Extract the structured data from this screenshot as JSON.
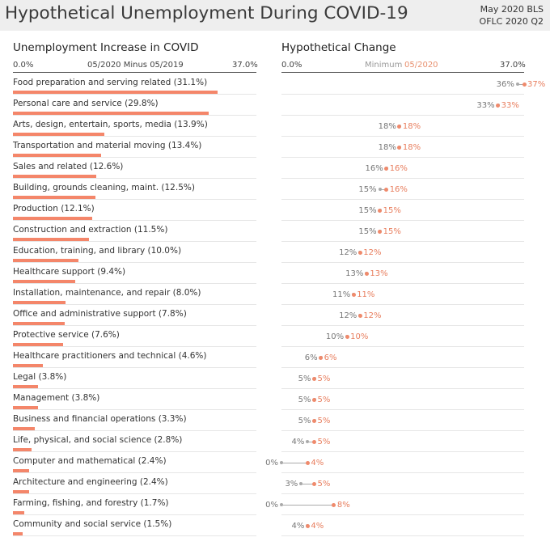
{
  "header": {
    "title": "Hypothetical Unemployment During COVID-19",
    "source_line1": "May 2020 BLS",
    "source_line2": "OFLC 2020 Q2"
  },
  "left_panel": {
    "title": "Unemployment Increase in COVID",
    "axis_min": "0.0%",
    "axis_mid": "05/2020 Minus 05/2019",
    "axis_max": "37.0%"
  },
  "right_panel": {
    "title": "Hypothetical Change",
    "axis_min": "0.0%",
    "axis_mid_label": "Minimum",
    "axis_mid_value": "05/2020",
    "axis_max": "37.0%"
  },
  "colors": {
    "accent": "#f4866a",
    "baseline_dot": "#aaaaaa",
    "header_bg": "#eeeeee"
  },
  "chart_data": {
    "type": "bar",
    "xlim": [
      0,
      37
    ],
    "categories": [
      "Food preparation and serving related (31.1%)",
      "Personal care and service (29.8%)",
      "Arts, design, entertain, sports, media (13.9%)",
      "Transportation and material moving (13.4%)",
      "Sales and related (12.6%)",
      "Building, grounds cleaning, maint. (12.5%)",
      "Production (12.1%)",
      "Construction and extraction (11.5%)",
      "Education, training, and library (10.0%)",
      "Healthcare support (9.4%)",
      "Installation, maintenance, and repair (8.0%)",
      "Office and administrative support (7.8%)",
      "Protective service (7.6%)",
      "Healthcare practitioners and technical (4.6%)",
      "Legal (3.8%)",
      "Management (3.8%)",
      "Business and financial operations (3.3%)",
      "Life, physical, and social science (2.8%)",
      "Computer and mathematical (2.4%)",
      "Architecture and engineering (2.4%)",
      "Farming, fishing, and forestry (1.7%)",
      "Community and social service (1.5%)"
    ],
    "increase": [
      31.1,
      29.8,
      13.9,
      13.4,
      12.6,
      12.5,
      12.1,
      11.5,
      10.0,
      9.4,
      8.0,
      7.8,
      7.6,
      4.6,
      3.8,
      3.8,
      3.3,
      2.8,
      2.4,
      2.4,
      1.7,
      1.5
    ],
    "minimum": [
      36,
      33,
      18,
      18,
      16,
      15,
      15,
      15,
      12,
      13,
      11,
      12,
      10,
      6,
      5,
      5,
      5,
      4,
      0,
      3,
      0,
      4
    ],
    "may_2020": [
      37,
      33,
      18,
      18,
      16,
      16,
      15,
      15,
      12,
      13,
      11,
      12,
      10,
      6,
      5,
      5,
      5,
      5,
      4,
      5,
      8,
      4
    ],
    "minimum_labels": [
      "36%",
      "33%",
      "18%",
      "18%",
      "16%",
      "15%",
      "15%",
      "15%",
      "12%",
      "13%",
      "11%",
      "12%",
      "10%",
      "6%",
      "5%",
      "5%",
      "5%",
      "4%",
      "0%",
      "3%",
      "0%",
      "4%"
    ],
    "may_2020_labels": [
      "37%",
      "33%",
      "18%",
      "18%",
      "16%",
      "16%",
      "15%",
      "15%",
      "12%",
      "13%",
      "11%",
      "12%",
      "10%",
      "6%",
      "5%",
      "5%",
      "5%",
      "5%",
      "4%",
      "5%",
      "8%",
      "4%"
    ]
  }
}
